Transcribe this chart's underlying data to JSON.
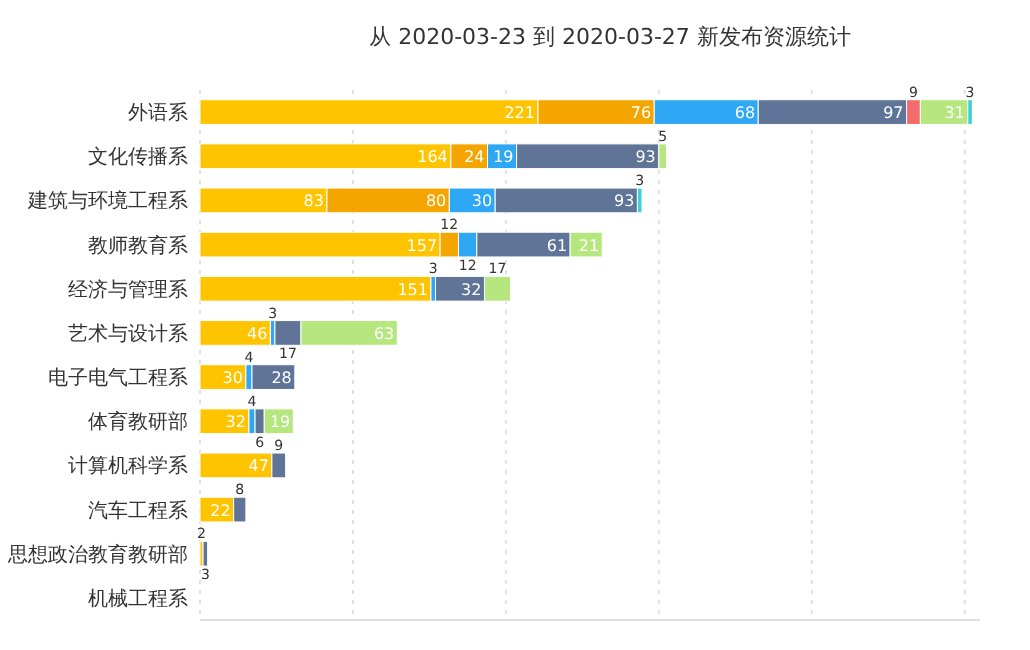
{
  "chart_data": {
    "type": "bar",
    "title": "从 2020-03-23 到 2020-03-27 新发布资源统计",
    "orientation": "horizontal",
    "stacked": true,
    "data_labels": true,
    "grid": "x",
    "tick_labels": "y",
    "categories": [
      "外语系",
      "文化传播系",
      "建筑与环境工程系",
      "教师教育系",
      "经济与管理系",
      "艺术与设计系",
      "电子电气工程系",
      "体育教研部",
      "计算机科学系",
      "汽车工程系",
      "思想政治教育教研部",
      "机械工程系"
    ],
    "xlim": [
      0,
      510
    ],
    "xticks": [
      {
        "value": 0,
        "label": null
      },
      {
        "value": 100,
        "label": null
      },
      {
        "value": 200,
        "label": null
      },
      {
        "value": 300,
        "label": null
      },
      {
        "value": 400,
        "label": null
      },
      {
        "value": 500,
        "label": null
      }
    ],
    "series": [
      {
        "color": "#ffc400",
        "values": [
          221,
          164,
          83,
          157,
          151,
          46,
          30,
          32,
          47,
          22,
          2,
          null
        ]
      },
      {
        "color": "#f5a500",
        "values": [
          76,
          24,
          80,
          12,
          null,
          null,
          null,
          null,
          null,
          null,
          null,
          null
        ]
      },
      {
        "color": "#2ea8f5",
        "values": [
          68,
          19,
          30,
          12,
          3,
          3,
          4,
          4,
          null,
          null,
          null,
          null
        ]
      },
      {
        "color": "#5f7496",
        "values": [
          97,
          93,
          93,
          61,
          32,
          17,
          28,
          6,
          9,
          8,
          3,
          null
        ]
      },
      {
        "color": "#f36b6b",
        "values": [
          9,
          null,
          null,
          null,
          null,
          null,
          null,
          null,
          null,
          null,
          null,
          null
        ]
      },
      {
        "color": "#b5e77e",
        "values": [
          31,
          5,
          null,
          21,
          17,
          63,
          null,
          19,
          null,
          null,
          null,
          null
        ]
      },
      {
        "color": "#3ed0d8",
        "values": [
          3,
          null,
          3,
          null,
          null,
          null,
          null,
          null,
          null,
          null,
          null,
          null
        ]
      }
    ]
  }
}
